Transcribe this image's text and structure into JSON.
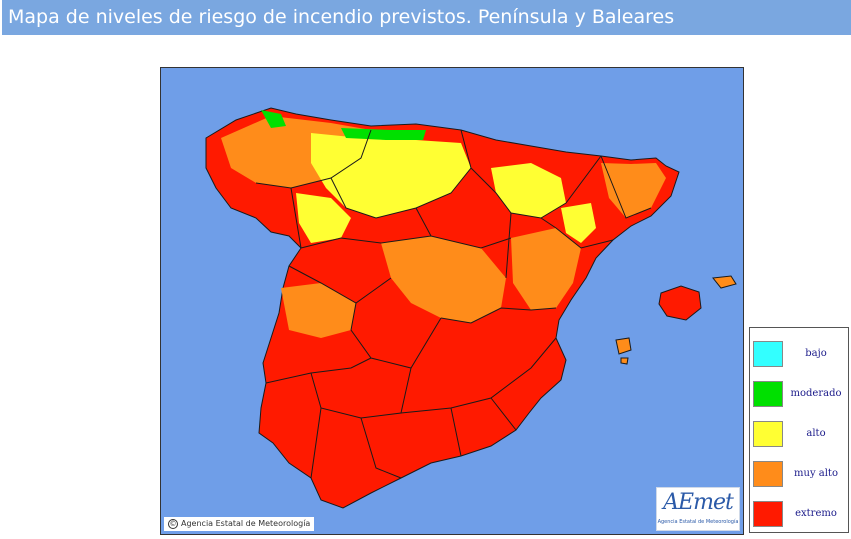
{
  "header": {
    "title": "Mapa de niveles de riesgo de incendio previstos. Península y Baleares"
  },
  "map": {
    "copyright": "Agencia Estatal de Meteorología",
    "logo": {
      "text": "AEmet",
      "subtitle": "Agencia Estatal de Meteorología"
    },
    "colors": {
      "sea": "#6f9ee8",
      "bajo": "#33ffff",
      "moderado": "#00e000",
      "alto": "#ffff33",
      "muy_alto": "#ff8c1a",
      "extremo": "#ff1a00",
      "border": "#1a1a1a"
    }
  },
  "legend": {
    "items": [
      {
        "label": "bajo",
        "color": "#33ffff"
      },
      {
        "label": "moderado",
        "color": "#00e000"
      },
      {
        "label": "alto",
        "color": "#ffff33"
      },
      {
        "label": "muy alto",
        "color": "#ff8c1a"
      },
      {
        "label": "extremo",
        "color": "#ff1a00"
      }
    ]
  }
}
